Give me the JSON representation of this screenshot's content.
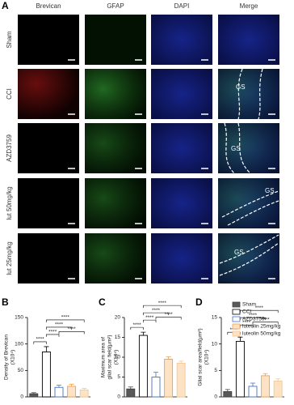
{
  "panel_a": {
    "label": "A",
    "columns": [
      "Brevican",
      "GFAP",
      "DAPI",
      "Merge"
    ],
    "rows": [
      "Sham",
      "CCI",
      "AZD3759",
      "lut 50mg/kg",
      "lut 25mg/kg"
    ],
    "annotations": [
      "GS",
      "GS",
      "GS",
      "GS"
    ]
  },
  "chart_data": [
    {
      "type": "bar",
      "panel": "B",
      "ylabel": [
        "Density of Brevican",
        "(X10⁴)"
      ],
      "categories": [
        "Sham",
        "CCI",
        "AZD3759",
        "luteolin 25mg/kg",
        "luteolin 50mg/kg"
      ],
      "values": [
        6,
        85,
        18,
        20,
        13
      ],
      "errors": [
        2,
        10,
        4,
        4,
        3
      ],
      "colors": [
        "#404040",
        "#000000",
        "#4472c4",
        "#f0a050",
        "#f5c890"
      ],
      "fills": [
        "#595959",
        "#ffffff",
        "#ffffff",
        "#fde2c4",
        "#fde2c4"
      ],
      "ylim": [
        0,
        150
      ],
      "yticks": [
        0,
        50,
        100,
        150
      ],
      "significance": [
        "****",
        "****",
        "****",
        "****",
        "****"
      ]
    },
    {
      "type": "bar",
      "panel": "C",
      "ylabel": [
        "Maximum area of",
        "glial scar field(μm²)",
        "(X10⁴)"
      ],
      "categories": [
        "Sham",
        "CCI",
        "AZD3759",
        "luteolin 25mg/kg",
        "luteolin 50mg/kg"
      ],
      "values": [
        2,
        15.5,
        5,
        9.5,
        8.5
      ],
      "errors": [
        0.5,
        0.8,
        1.2,
        0.6,
        0.5
      ],
      "colors": [
        "#404040",
        "#000000",
        "#4472c4",
        "#f0a050",
        "#f5c890"
      ],
      "fills": [
        "#595959",
        "#ffffff",
        "#ffffff",
        "#fde2c4",
        "#fde2c4"
      ],
      "ylim": [
        0,
        20
      ],
      "yticks": [
        0,
        5,
        10,
        15,
        20
      ],
      "significance": [
        "****",
        "****",
        "****",
        "****",
        "****"
      ]
    },
    {
      "type": "bar",
      "panel": "D",
      "ylabel": [
        "Glial scar area/field(μm²)",
        "(X10⁴)"
      ],
      "categories": [
        "Sham",
        "CCI",
        "AZD3759",
        "luteolin 25mg/kg",
        "luteolin 50mg/kg"
      ],
      "values": [
        1,
        10.5,
        2,
        4,
        3
      ],
      "errors": [
        0.4,
        0.8,
        0.6,
        0.4,
        0.4
      ],
      "colors": [
        "#404040",
        "#000000",
        "#4472c4",
        "#f0a050",
        "#f5c890"
      ],
      "fills": [
        "#595959",
        "#ffffff",
        "#ffffff",
        "#fde2c4",
        "#fde2c4"
      ],
      "ylim": [
        0,
        15
      ],
      "yticks": [
        0,
        5,
        10,
        15
      ],
      "significance": [
        "****",
        "****",
        "****",
        "****",
        "****"
      ]
    }
  ]
}
